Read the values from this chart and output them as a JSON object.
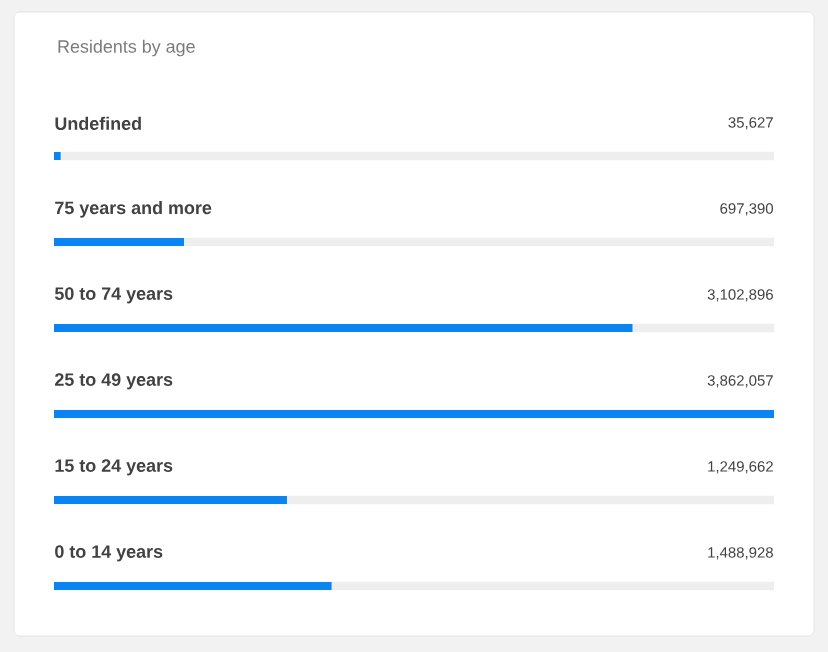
{
  "chart_data": {
    "type": "bar",
    "orientation": "horizontal",
    "title": "Residents by age",
    "categories": [
      "Undefined",
      "75 years and more",
      "50 to 74 years",
      "25 to 49 years",
      "15 to 24 years",
      "0 to 14 years"
    ],
    "values": [
      35627,
      697390,
      3102896,
      3862057,
      1249662,
      1488928
    ],
    "value_labels": [
      "35,627",
      "697,390",
      "3,102,896",
      "3,862,057",
      "1,249,662",
      "1,488,928"
    ],
    "color": "#0a84f0"
  }
}
